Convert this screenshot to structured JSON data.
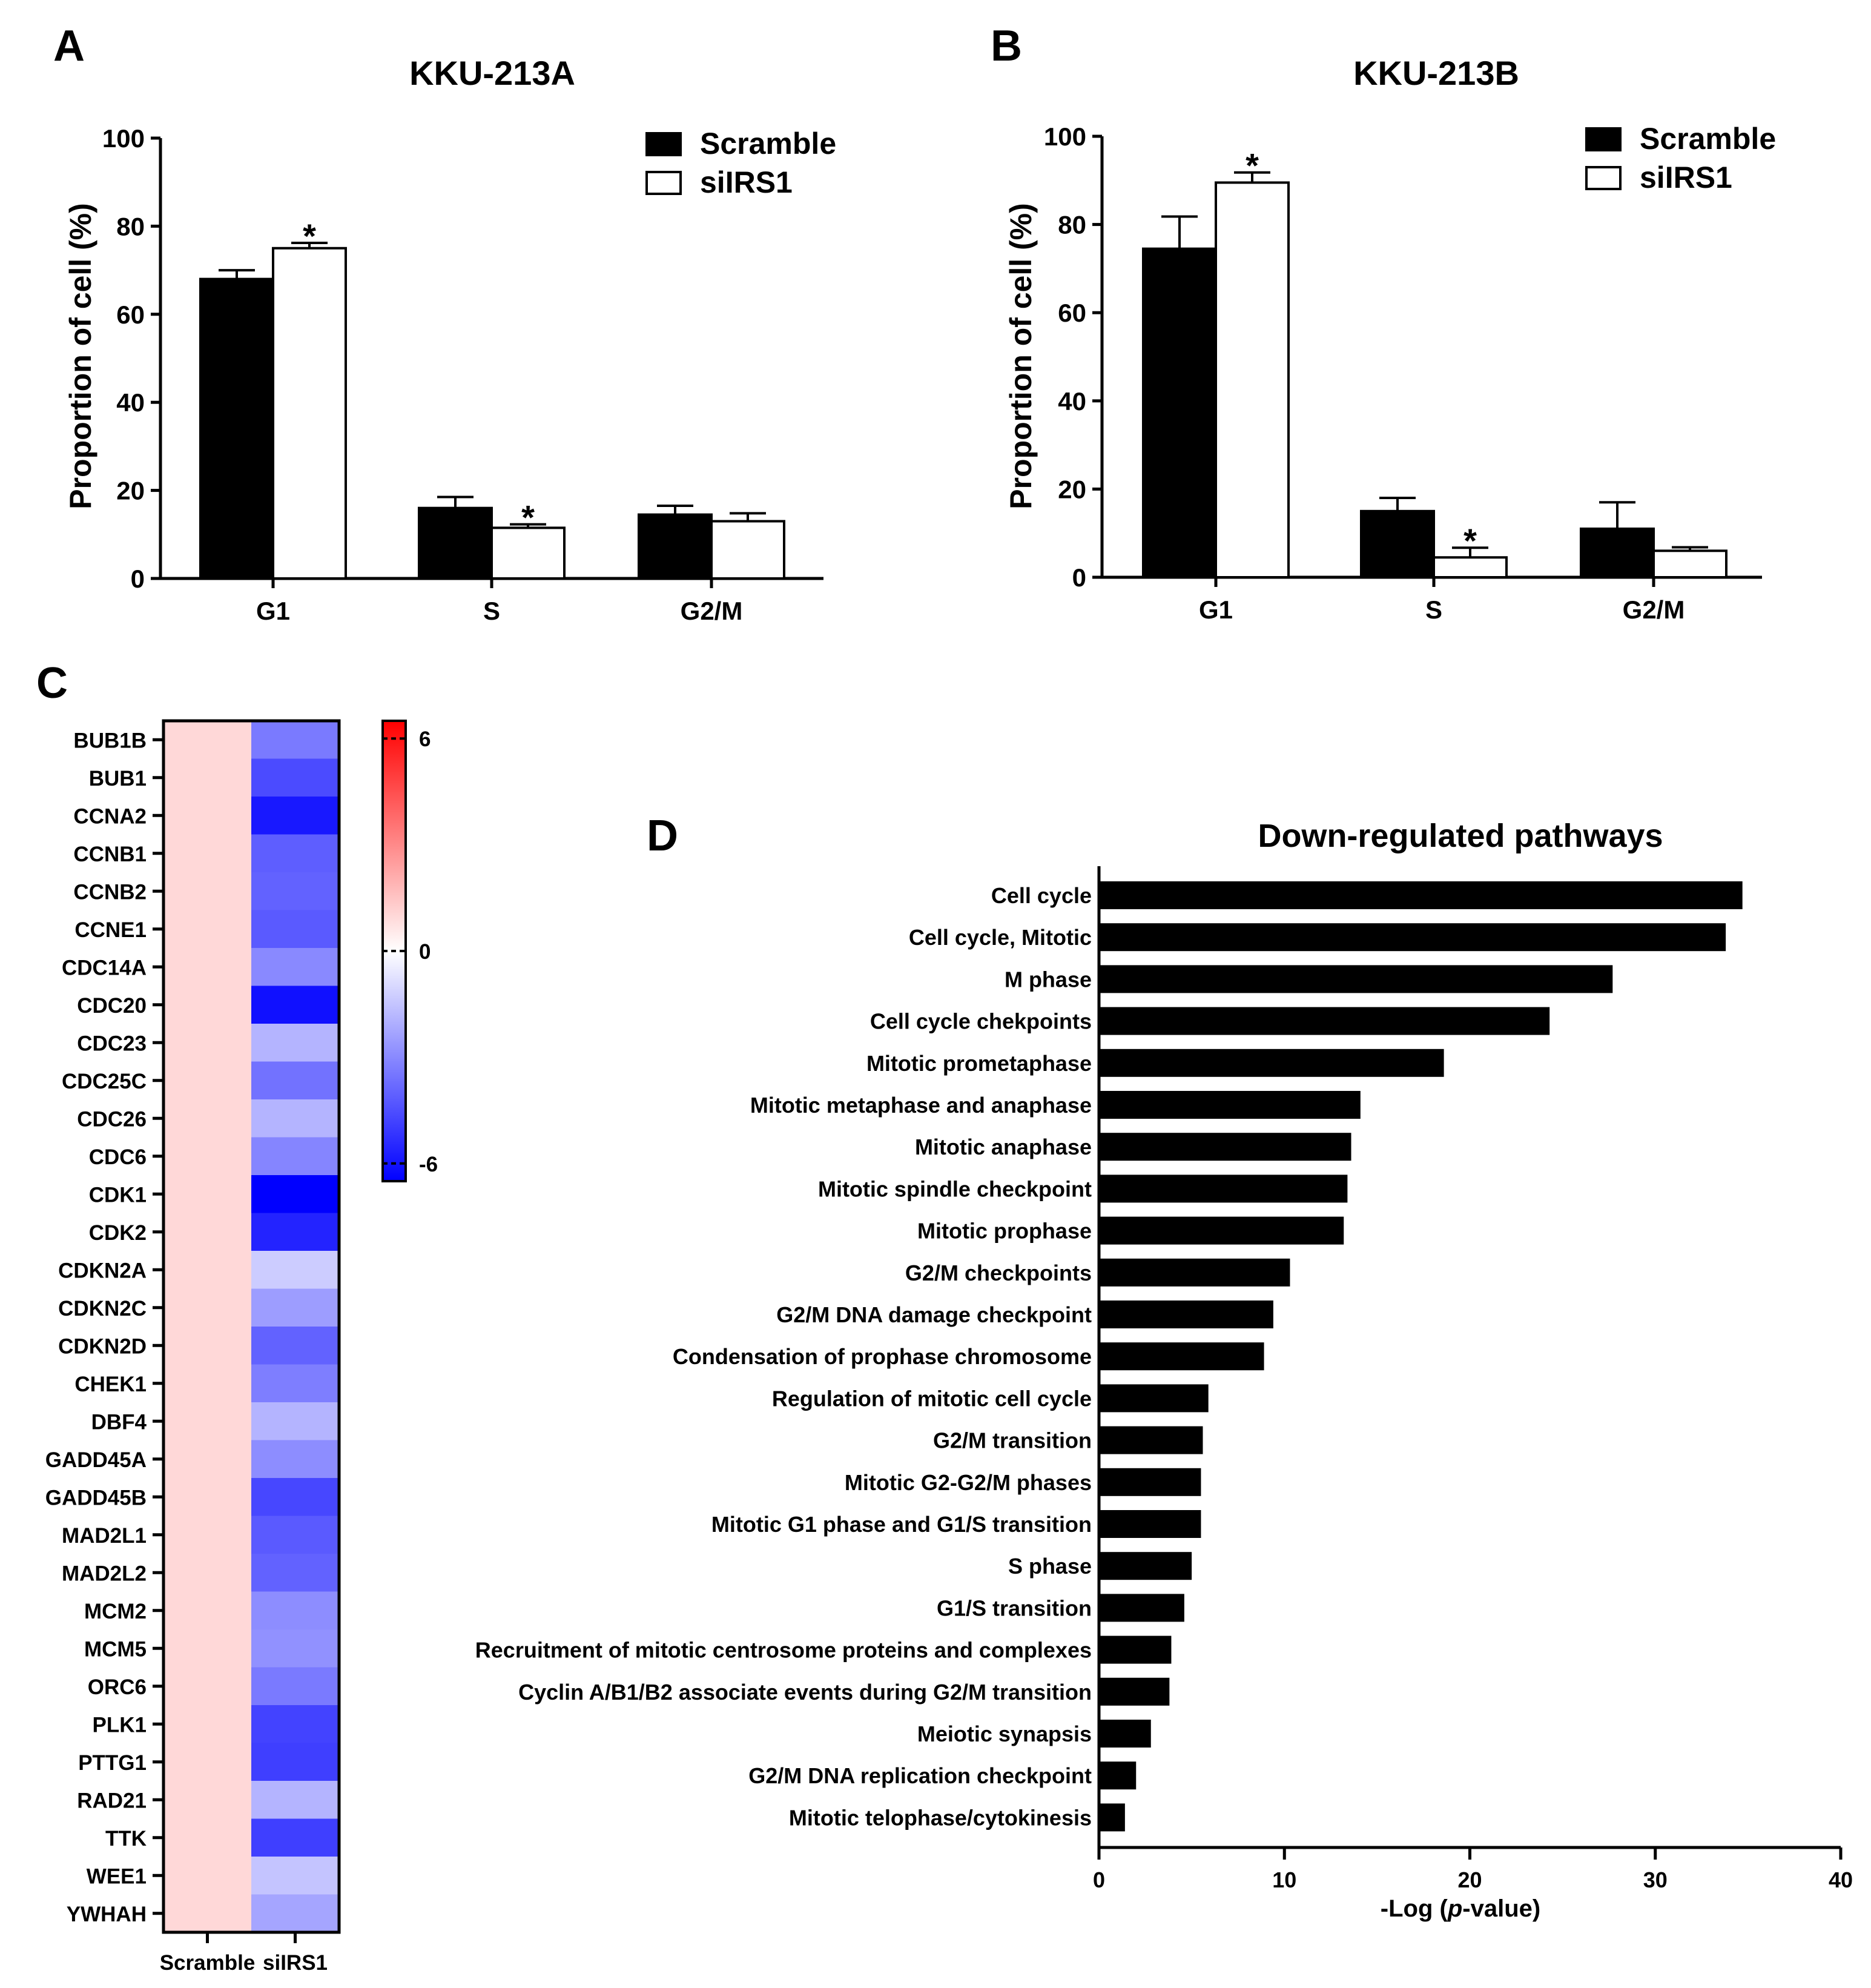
{
  "panels": {
    "A": {
      "letter": "A",
      "title": "KKU-213A"
    },
    "B": {
      "letter": "B",
      "title": "KKU-213B"
    },
    "C": {
      "letter": "C"
    },
    "D": {
      "letter": "D",
      "title": "Down-regulated pathways"
    }
  },
  "chart_data": [
    {
      "panel": "A",
      "type": "bar",
      "title": "KKU-213A",
      "ylabel": "Proportion of cell (%)",
      "ylim": [
        0,
        100
      ],
      "yticks": [
        "0",
        "20",
        "40",
        "60",
        "80",
        "100"
      ],
      "categories": [
        "G1",
        "S",
        "G2/M"
      ],
      "legend_placement": "top-right",
      "series": [
        {
          "name": "Scramble",
          "color": "#000000",
          "values": [
            68,
            16,
            14.5
          ],
          "errors": [
            2,
            2.5,
            2
          ]
        },
        {
          "name": "siIRS1",
          "color": "#ffffff",
          "values": [
            75,
            11.5,
            13
          ],
          "errors": [
            1.2,
            0.8,
            1.8
          ]
        }
      ],
      "significance": [
        {
          "category": "G1",
          "series": "siIRS1",
          "mark": "*"
        },
        {
          "category": "S",
          "series": "siIRS1",
          "mark": "*"
        }
      ]
    },
    {
      "panel": "B",
      "type": "bar",
      "title": "KKU-213B",
      "ylabel": "Proportion of cell (%)",
      "ylim": [
        0,
        100
      ],
      "yticks": [
        "0",
        "20",
        "40",
        "60",
        "80",
        "100"
      ],
      "categories": [
        "G1",
        "S",
        "G2/M"
      ],
      "legend_placement": "top-right",
      "series": [
        {
          "name": "Scramble",
          "color": "#000000",
          "values": [
            74.5,
            15,
            11
          ],
          "errors": [
            7.3,
            3,
            6
          ]
        },
        {
          "name": "siIRS1",
          "color": "#ffffff",
          "values": [
            89.5,
            4.5,
            6
          ],
          "errors": [
            2.3,
            2.2,
            0.8
          ]
        }
      ],
      "significance": [
        {
          "category": "G1",
          "series": "siIRS1",
          "mark": "*"
        },
        {
          "category": "S",
          "series": "siIRS1",
          "mark": "*"
        }
      ]
    },
    {
      "panel": "C",
      "type": "heatmap",
      "columns": [
        "Scramble",
        "siIRS1"
      ],
      "rows": [
        "BUB1B",
        "BUB1",
        "CCNA2",
        "CCNB1",
        "CCNB2",
        "CCNE1",
        "CDC14A",
        "CDC20",
        "CDC23",
        "CDC25C",
        "CDC26",
        "CDC6",
        "CDK1",
        "CDK2",
        "CDKN2A",
        "CDKN2C",
        "CDKN2D",
        "CHEK1",
        "DBF4",
        "GADD45A",
        "GADD45B",
        "MAD2L1",
        "MAD2L2",
        "MCM2",
        "MCM5",
        "ORC6",
        "PLK1",
        "PTTG1",
        "RAD21",
        "TTK",
        "WEE1",
        "YWHAH"
      ],
      "scramble_value": 1,
      "siIRS1_values": [
        -3.4,
        -4.6,
        -5.9,
        -4.1,
        -4.0,
        -4.2,
        -3.0,
        -6.1,
        -1.9,
        -3.6,
        -1.9,
        -3.1,
        -6.5,
        -5.6,
        -1.3,
        -2.5,
        -4.0,
        -3.3,
        -1.9,
        -2.9,
        -4.7,
        -4.2,
        -4.0,
        -2.9,
        -2.8,
        -3.4,
        -4.8,
        -4.9,
        -1.9,
        -4.9,
        -1.5,
        -2.3
      ],
      "colorbar": {
        "min": -6.5,
        "max": 6.5,
        "ticks": [
          6,
          0,
          -6
        ],
        "tick_labels": [
          "6",
          "0",
          "-6"
        ],
        "colors": {
          "low": "#0000ff",
          "mid": "#ffffff",
          "high": "#ff0000"
        }
      }
    },
    {
      "panel": "D",
      "type": "bar",
      "orientation": "horizontal",
      "title": "Down-regulated pathways",
      "xlabel": "-Log (p-value)",
      "xlabel_parts": {
        "pre": "-Log (",
        "italic": "p",
        "post": "-value)"
      },
      "xlim": [
        0,
        40
      ],
      "xticks": [
        "0",
        "10",
        "20",
        "30",
        "40"
      ],
      "categories": [
        "Cell cycle",
        "Cell cycle, Mitotic",
        "M phase",
        "Cell cycle chekpoints",
        "Mitotic prometaphase",
        "Mitotic metaphase and anaphase",
        "Mitotic anaphase",
        "Mitotic spindle checkpoint",
        "Mitotic prophase",
        "G2/M checkpoints",
        "G2/M DNA damage checkpoint",
        "Condensation of prophase chromosome",
        "Regulation of mitotic cell cycle",
        "G2/M transition",
        "Mitotic G2-G2/M phases",
        "Mitotic G1 phase and G1/S transition",
        "S phase",
        "G1/S transition",
        "Recruitment of mitotic centrosome proteins and complexes",
        "Cyclin A/B1/B2 associate events during G2/M transition",
        "Meiotic synapsis",
        "G2/M DNA replication checkpoint",
        "Mitotic telophase/cytokinesis"
      ],
      "values": [
        34.7,
        33.8,
        27.7,
        24.3,
        18.6,
        14.1,
        13.6,
        13.4,
        13.2,
        10.3,
        9.4,
        8.9,
        5.9,
        5.6,
        5.5,
        5.5,
        5.0,
        4.6,
        3.9,
        3.8,
        2.8,
        2.0,
        1.4
      ]
    }
  ]
}
